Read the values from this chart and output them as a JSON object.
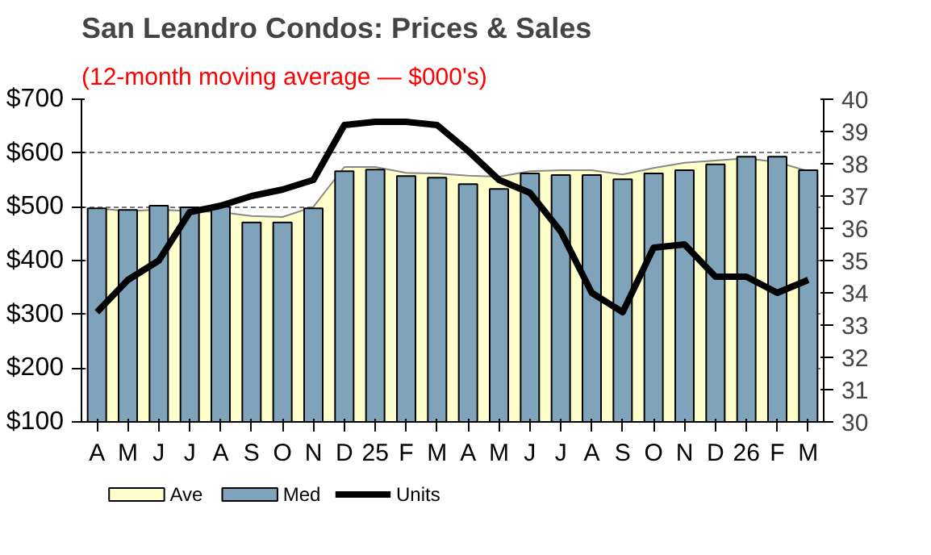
{
  "chart_data": {
    "type": "bar",
    "title": "San Leandro Condos: Prices & Sales",
    "subtitle": "(12-month moving average — $000's)",
    "categories": [
      "A",
      "M",
      "J",
      "J",
      "A",
      "S",
      "O",
      "N",
      "D",
      "25",
      "F",
      "M",
      "A",
      "M",
      "J",
      "J",
      "A",
      "S",
      "O",
      "N",
      "D",
      "26",
      "F",
      "M"
    ],
    "series": [
      {
        "name": "Ave",
        "type": "area",
        "color": "#ffffcc",
        "values": [
          497,
          492,
          495,
          492,
          490,
          483,
          481,
          500,
          574,
          574,
          563,
          562,
          558,
          556,
          566,
          568,
          568,
          560,
          572,
          582,
          586,
          590,
          583,
          566
        ]
      },
      {
        "name": "Med",
        "color": "#7fa3bb",
        "values": [
          497,
          494,
          502,
          499,
          500,
          471,
          471,
          497,
          566,
          569,
          557,
          554,
          542,
          533,
          562,
          559,
          559,
          551,
          562,
          568,
          579,
          593,
          593,
          568
        ]
      },
      {
        "name": "Units",
        "type": "line",
        "axis": "y2",
        "color": "#000000",
        "values": [
          33.4,
          34.4,
          35.0,
          36.5,
          36.7,
          37.0,
          37.2,
          37.5,
          39.2,
          39.3,
          39.3,
          39.2,
          38.4,
          37.5,
          37.1,
          35.9,
          34.0,
          33.4,
          35.4,
          35.5,
          34.5,
          34.5,
          34.0,
          34.4
        ]
      }
    ],
    "ylim": [
      100,
      700
    ],
    "yticks": [
      {
        "value": 100,
        "label": "$100"
      },
      {
        "value": 200,
        "label": "$200"
      },
      {
        "value": 300,
        "label": "$300"
      },
      {
        "value": 400,
        "label": "$400"
      },
      {
        "value": 500,
        "label": "$500"
      },
      {
        "value": 600,
        "label": "$600"
      },
      {
        "value": 700,
        "label": "$700"
      }
    ],
    "y2lim": [
      30,
      40
    ],
    "y2ticks": [
      30,
      31,
      32,
      33,
      34,
      35,
      36,
      37,
      38,
      39,
      40
    ],
    "grid": "y",
    "legend": "bottom",
    "line_style": "solid",
    "marker": "none"
  }
}
